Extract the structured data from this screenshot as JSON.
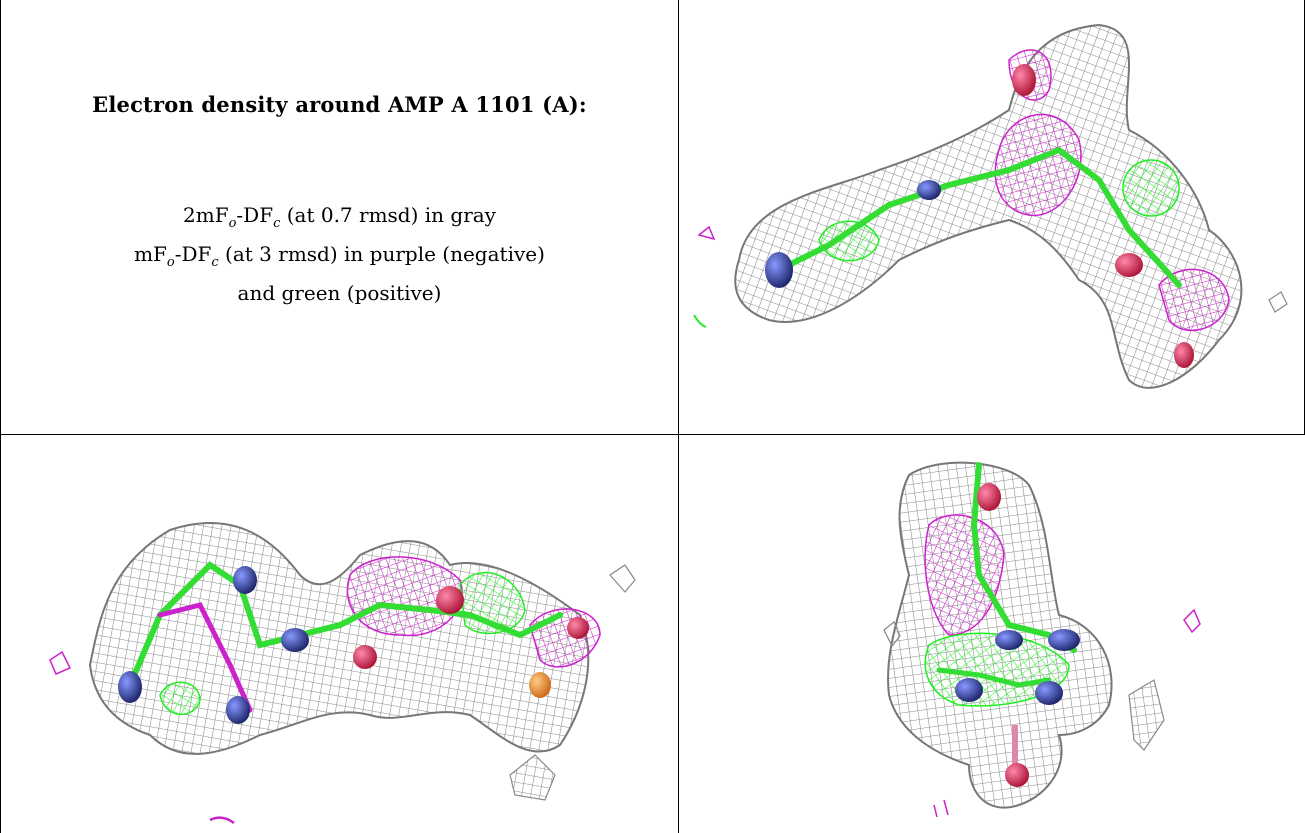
{
  "heading": "Electron density around AMP A 1101 (A):",
  "legend": {
    "line1": {
      "prefix": "2mF",
      "sub1": "o",
      "mid": "-DF",
      "sub2": "c",
      "rest": " (at 0.7 rmsd) in gray"
    },
    "line2": {
      "prefix": "mF",
      "sub1": "o",
      "mid": "-DF",
      "sub2": "c",
      "rest": " (at 3 rmsd) in purple (negative)"
    },
    "line3": "and green (positive)"
  },
  "colors": {
    "mesh_gray": "#8a8a8a",
    "mesh_purple": "#cc22cc",
    "mesh_green": "#22ee22",
    "atom_nitrogen": "#3344aa",
    "atom_oxygen": "#dd2255",
    "atom_phosphorus": "#ff9922",
    "carbon_stick": "#33dd33"
  },
  "panels": [
    "density-view-1",
    "density-view-2",
    "density-view-3"
  ]
}
